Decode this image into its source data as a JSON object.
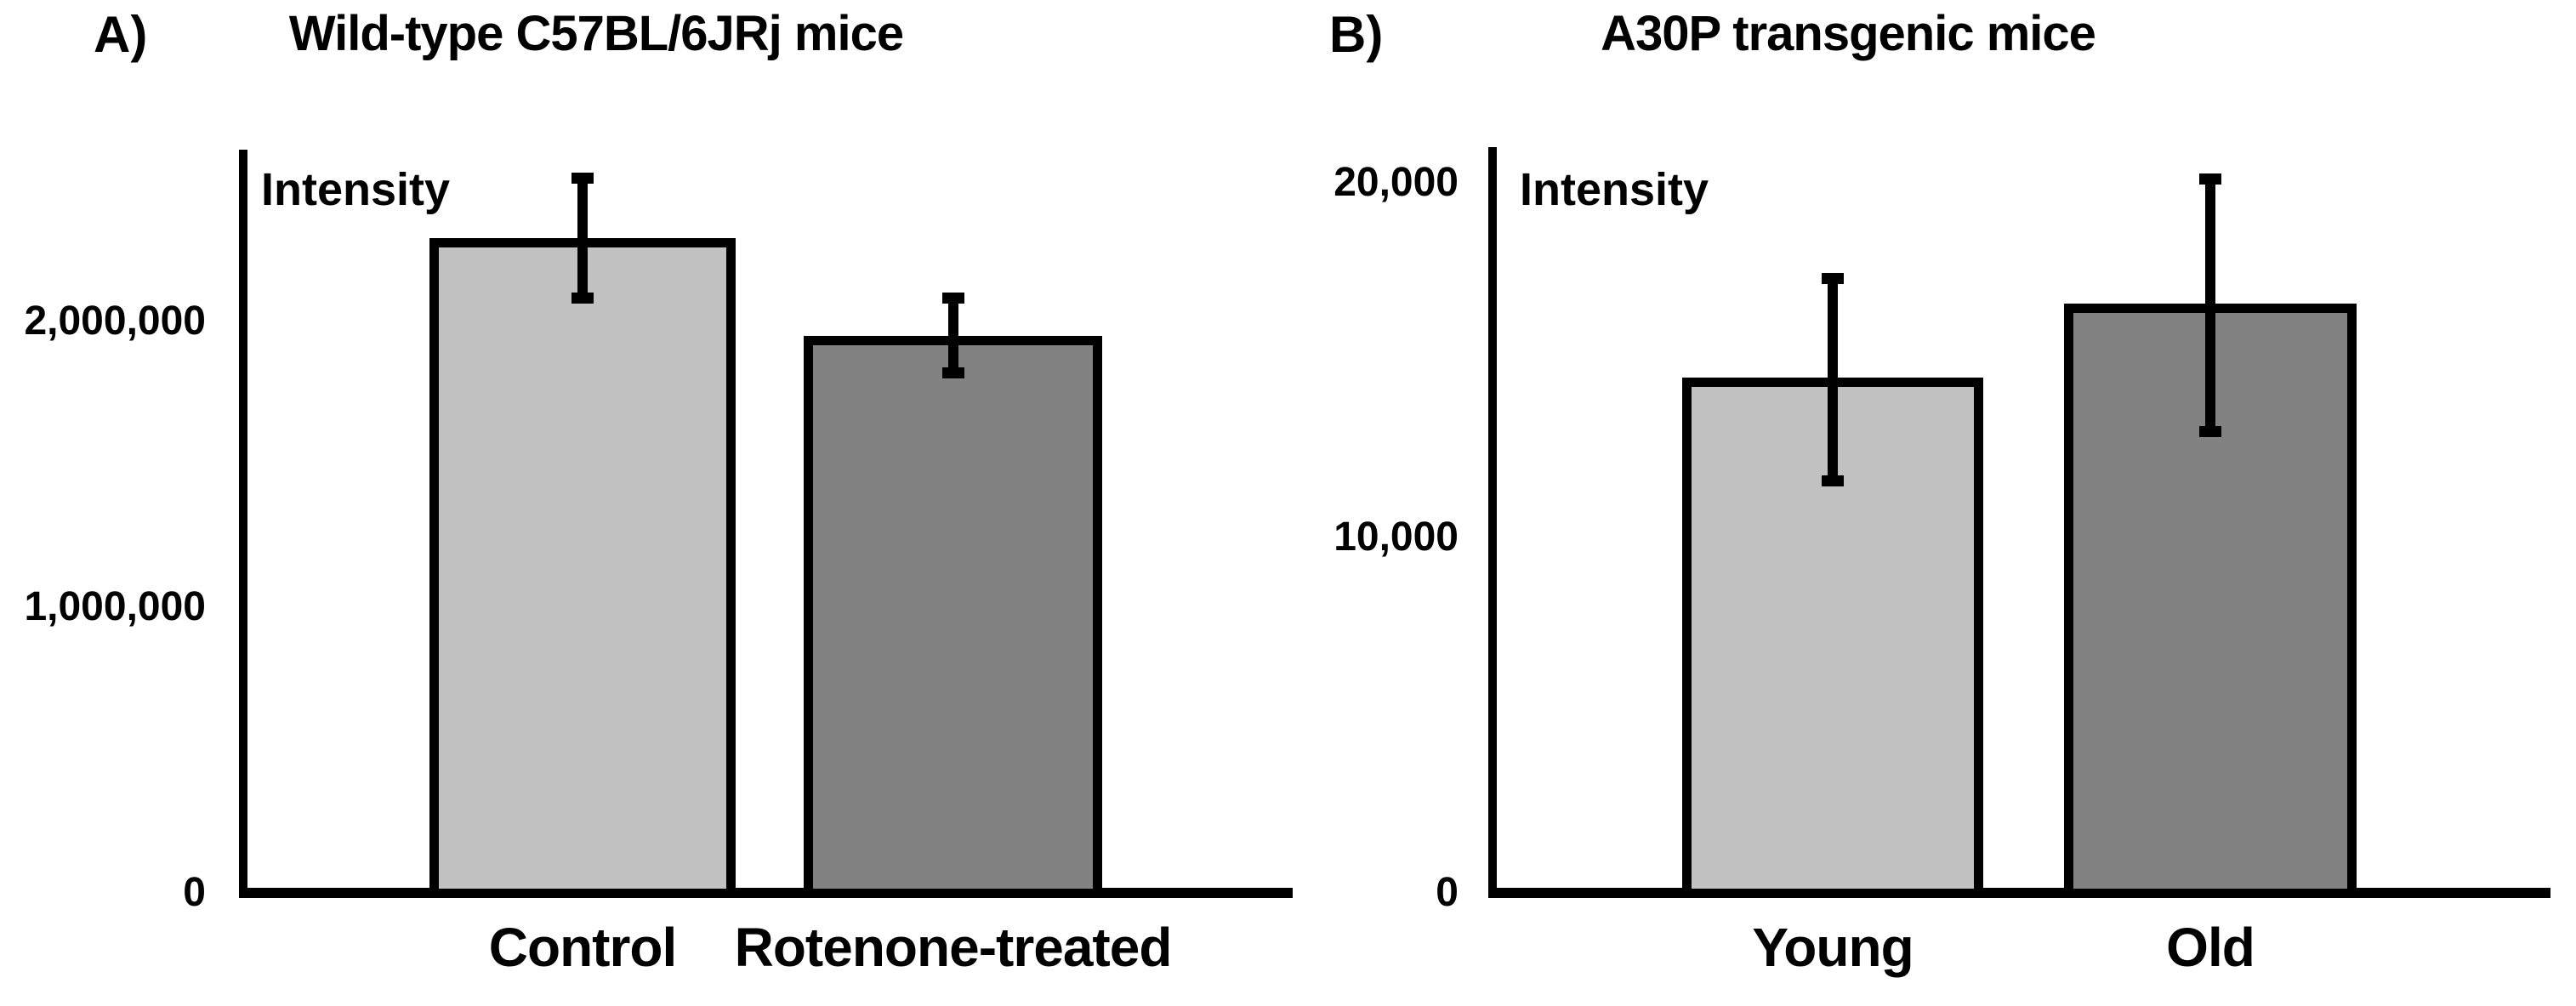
{
  "figure": {
    "background": "#ffffff",
    "text_color": "#000000",
    "panels": [
      {
        "panel_label": "A)",
        "title": "Wild-type C57BL/6JRj mice"
      },
      {
        "panel_label": "B)",
        "title": "A30P transgenic mice"
      }
    ]
  },
  "chart_data": [
    {
      "type": "bar",
      "panel": "A",
      "title": "Wild-type C57BL/6JRj mice",
      "ylabel": "Intensity",
      "xlabel": "",
      "categories": [
        "Control",
        "Rotenone-treated"
      ],
      "values": [
        2290000,
        1950000
      ],
      "error_low": [
        2080000,
        1820000
      ],
      "error_high": [
        2500000,
        2080000
      ],
      "ytick_values": [
        0,
        1000000,
        2000000
      ],
      "ytick_labels": [
        "0",
        "1,000,000",
        "2,000,000"
      ],
      "ylim": [
        0,
        2600000
      ],
      "grid": false,
      "legend": null,
      "bar_fill_colors": [
        "#c1c1c1",
        "#828282"
      ],
      "bar_border_color": "#000000",
      "error_bar_color": "#000000"
    },
    {
      "type": "bar",
      "panel": "B",
      "title": "A30P transgenic mice",
      "ylabel": "Intensity",
      "xlabel": "",
      "categories": [
        "Young",
        "Old"
      ],
      "values": [
        14500,
        16600
      ],
      "error_low": [
        11600,
        13000
      ],
      "error_high": [
        17300,
        20100
      ],
      "ytick_values": [
        0,
        10000,
        20000
      ],
      "ytick_labels": [
        "0",
        "10,000",
        "20,000"
      ],
      "ylim": [
        0,
        21000
      ],
      "grid": false,
      "legend": null,
      "bar_fill_colors": [
        "#c1c1c1",
        "#828282"
      ],
      "bar_border_color": "#000000",
      "error_bar_color": "#000000"
    }
  ]
}
